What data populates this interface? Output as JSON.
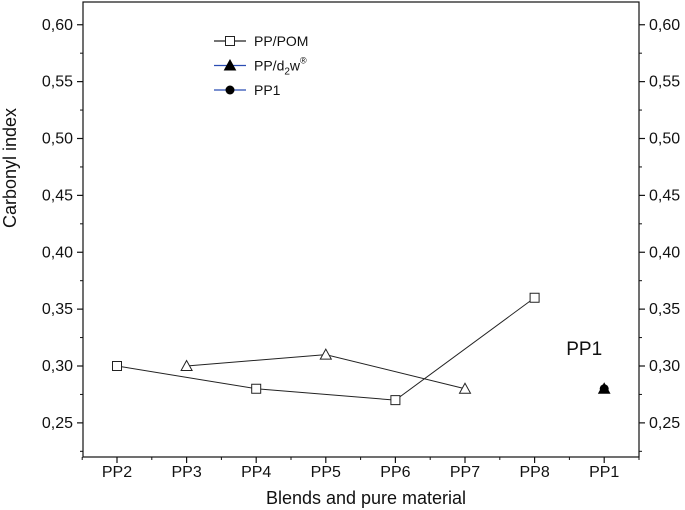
{
  "chart_data": {
    "type": "scatter",
    "xlabel": "Blends and pure material",
    "ylabel": "Carbonyl index",
    "categories": [
      "PP2",
      "PP3",
      "PP4",
      "PP5",
      "PP6",
      "PP7",
      "PP8",
      "PP1"
    ],
    "ylim": [
      0.22,
      0.62
    ],
    "yticks": [
      0.25,
      0.3,
      0.35,
      0.4,
      0.45,
      0.5,
      0.55,
      0.6
    ],
    "ytick_labels": [
      "0,25",
      "0,30",
      "0,35",
      "0,40",
      "0,45",
      "0,50",
      "0,55",
      "0,60"
    ],
    "right_axis_mirrored": true,
    "grid": false,
    "legend_position": "top-left",
    "series": [
      {
        "name": "PP/POM",
        "marker": "open-square",
        "line_color": "#222222",
        "legend_line_color": "#222222",
        "points": [
          {
            "x": "PP2",
            "y": 0.3
          },
          {
            "x": "PP4",
            "y": 0.28
          },
          {
            "x": "PP6",
            "y": 0.27
          },
          {
            "x": "PP8",
            "y": 0.36
          }
        ]
      },
      {
        "name": "PP/d2w®",
        "name_parts": {
          "base": "PP/d",
          "sub": "2",
          "mid": "w",
          "sup": "®"
        },
        "marker": "open-triangle",
        "line_color": "#222222",
        "legend_line_color": "#2b4db3",
        "points": [
          {
            "x": "PP3",
            "y": 0.3
          },
          {
            "x": "PP5",
            "y": 0.31
          },
          {
            "x": "PP7",
            "y": 0.28
          }
        ]
      },
      {
        "name": "PP1",
        "marker": "filled-circle",
        "line_color": "#222222",
        "legend_line_color": "#2b4db3",
        "points": [
          {
            "x": "PP1",
            "y": 0.28
          }
        ]
      }
    ],
    "overlay_markers": [
      {
        "x": "PP1",
        "y": 0.28,
        "marker": "filled-triangle"
      }
    ],
    "annotations": [
      {
        "text": "PP1",
        "x": "PP1",
        "y": 0.315
      }
    ]
  }
}
